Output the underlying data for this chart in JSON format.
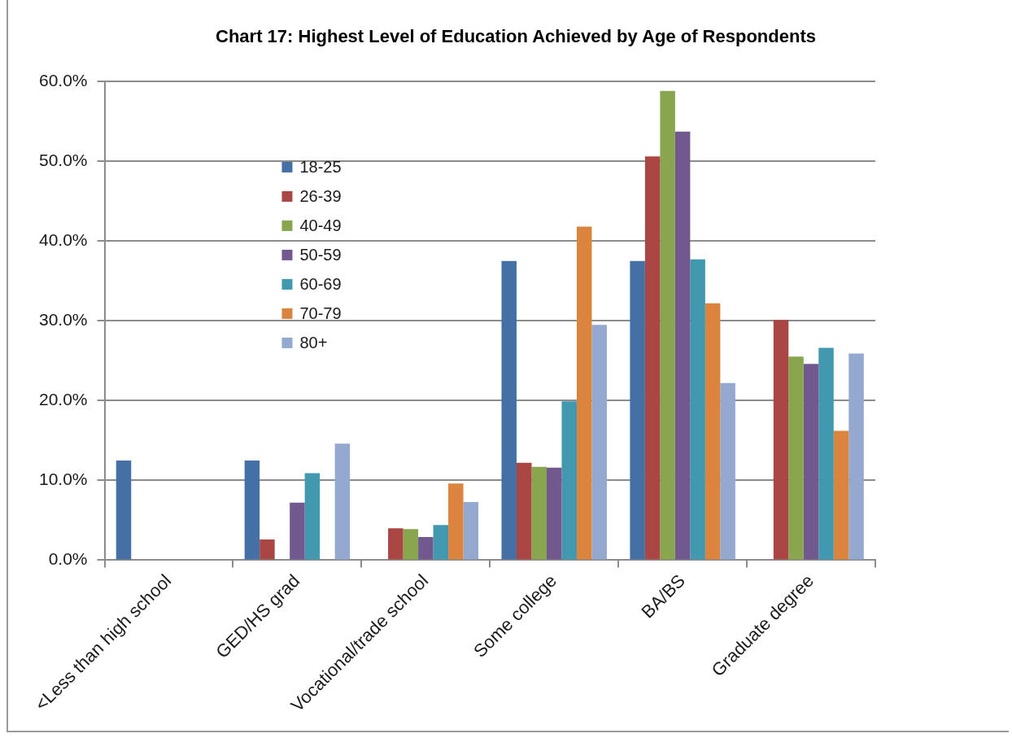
{
  "chart_data": {
    "type": "bar",
    "title": "Chart 17: Highest Level of Education Achieved by Age of Respondents",
    "categories": [
      "<Less than high school",
      "GED/HS grad",
      "Vocational/trade school",
      "Some college",
      "BA/BS",
      "Graduate degree"
    ],
    "series": [
      {
        "name": "18-25",
        "color": "#4470a5",
        "values": [
          12.5,
          12.5,
          0,
          37.5,
          37.5,
          0
        ]
      },
      {
        "name": "26-39",
        "color": "#aa4643",
        "values": [
          0,
          2.6,
          4.0,
          12.2,
          50.6,
          30.1
        ]
      },
      {
        "name": "40-49",
        "color": "#89a54e",
        "values": [
          0,
          0,
          3.9,
          11.7,
          58.8,
          25.5
        ]
      },
      {
        "name": "50-59",
        "color": "#71588f",
        "values": [
          0,
          7.2,
          2.9,
          11.6,
          53.7,
          24.6
        ]
      },
      {
        "name": "60-69",
        "color": "#4198af",
        "values": [
          0,
          10.9,
          4.4,
          19.9,
          37.7,
          26.6
        ]
      },
      {
        "name": "70-79",
        "color": "#db843d",
        "values": [
          0,
          0,
          9.6,
          41.8,
          32.2,
          16.2
        ]
      },
      {
        "name": "80+",
        "color": "#93a9cf",
        "values": [
          0,
          14.6,
          7.3,
          29.5,
          22.2,
          25.9
        ]
      }
    ],
    "ylim": [
      0,
      60
    ],
    "yticks": [
      {
        "value": 0,
        "label": "0.0%"
      },
      {
        "value": 10,
        "label": "10.0%"
      },
      {
        "value": 20,
        "label": "20.0%"
      },
      {
        "value": 30,
        "label": "30.0%"
      },
      {
        "value": 40,
        "label": "40.0%"
      },
      {
        "value": 50,
        "label": "50.0%"
      },
      {
        "value": 60,
        "label": "60.0%"
      }
    ],
    "grid": "y",
    "legend": "top left"
  }
}
